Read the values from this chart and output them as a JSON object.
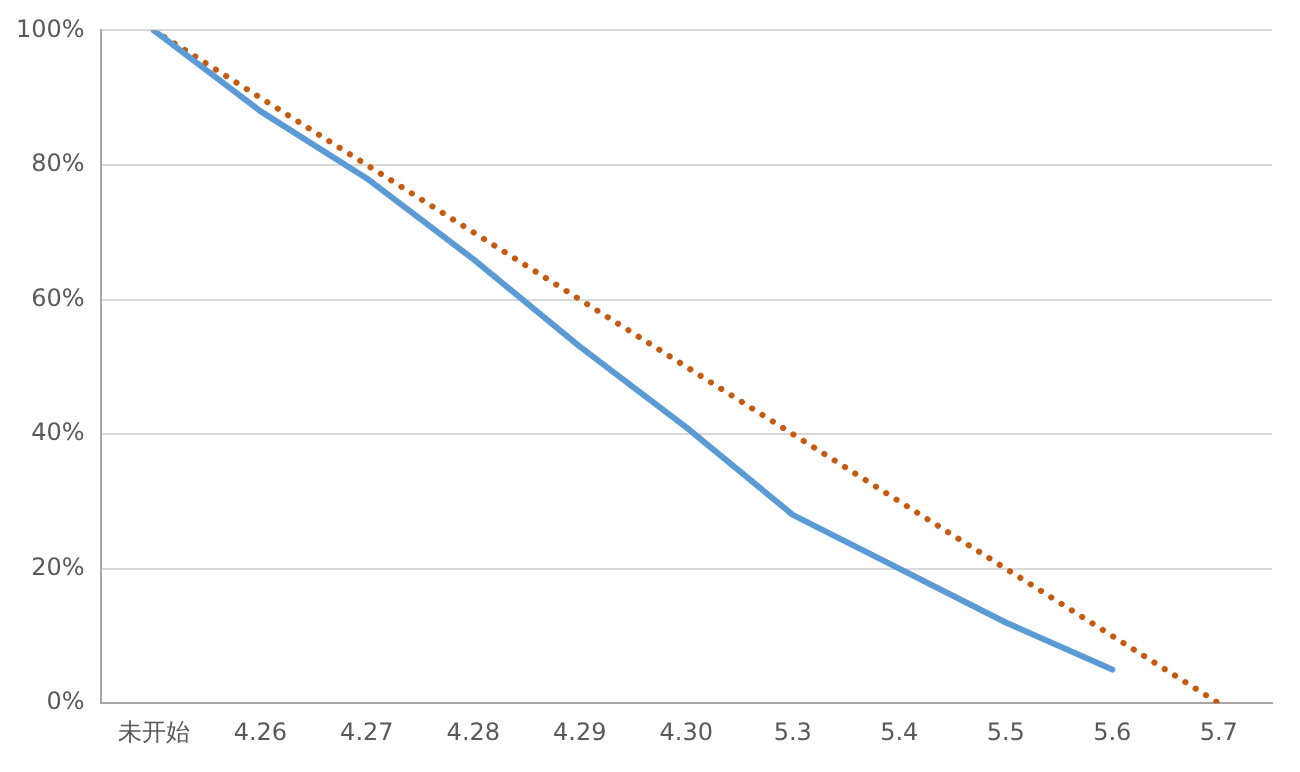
{
  "chart_data": {
    "type": "line",
    "categories": [
      "未开始",
      "4.26",
      "4.27",
      "4.28",
      "4.29",
      "4.30",
      "5.3",
      "5.4",
      "5.5",
      "5.6",
      "5.7"
    ],
    "series": [
      {
        "color": "#5b9bd5",
        "line_style": "solid",
        "values": [
          100,
          88,
          78,
          66,
          53,
          41,
          28,
          20,
          12,
          5,
          null
        ]
      },
      {
        "color": "#c55a11",
        "line_style": "dotted",
        "values": [
          100,
          90,
          80,
          70,
          60,
          50,
          40,
          30,
          20,
          10,
          0
        ]
      }
    ],
    "ylim": [
      0,
      100
    ],
    "yticks": [
      {
        "value": 0,
        "label": "0%"
      },
      {
        "value": 20,
        "label": "20%"
      },
      {
        "value": 40,
        "label": "40%"
      },
      {
        "value": 60,
        "label": "60%"
      },
      {
        "value": 80,
        "label": "80%"
      },
      {
        "value": 100,
        "label": "100%"
      }
    ],
    "grid": "y",
    "legend": false,
    "marker": "none"
  }
}
